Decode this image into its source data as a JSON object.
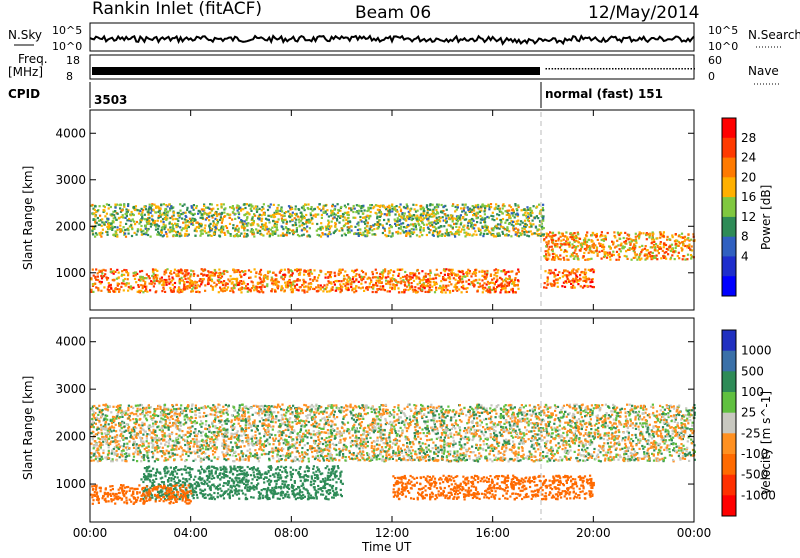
{
  "header": {
    "station": "Rankin Inlet (fitACF)",
    "beam": "Beam 06",
    "date": "12/May/2014"
  },
  "summary_panels": {
    "nsky": {
      "left_label": "N.Sky",
      "right_label": "N.Search",
      "right_ticks": [
        "10^5",
        "10^0"
      ],
      "left_ticks": [
        "10^5",
        "10^0"
      ]
    },
    "freq": {
      "left_label_1": "Freq.",
      "left_label_2": "[MHz]",
      "left_ticks": [
        "18",
        "8"
      ],
      "right_label": "Nave",
      "right_ticks": [
        "60",
        "0"
      ]
    },
    "cpid": {
      "label": "CPID",
      "segments": [
        {
          "text": "3503",
          "start_hour": 0
        },
        {
          "text": "normal (fast) 151",
          "start_hour": 18
        }
      ]
    }
  },
  "chart_data": [
    {
      "type": "heatmap",
      "name": "power",
      "xlabel": "",
      "ylabel": "Slant Range [km]",
      "xlim": [
        0,
        24
      ],
      "ylim": [
        200,
        4500
      ],
      "y_ticks": [
        1000,
        2000,
        3000,
        4000
      ],
      "x_ticks": [
        0,
        4,
        8,
        12,
        16,
        20,
        24
      ],
      "colorbar": {
        "label": "Power [dB]",
        "tick_labels": [
          "28",
          "24",
          "20",
          "16",
          "12",
          "8",
          "4"
        ],
        "colors": [
          "#ff0000",
          "#ff3a00",
          "#ff7a00",
          "#ffb000",
          "#80c840",
          "#2e8b57",
          "#3060c0",
          "#1e2ecc",
          "#0000ff"
        ]
      },
      "bands": [
        {
          "x": [
            0,
            18
          ],
          "y": [
            1800,
            2500
          ],
          "level": 14
        },
        {
          "x": [
            0,
            17
          ],
          "y": [
            600,
            1100
          ],
          "level": 22
        },
        {
          "x": [
            18,
            24
          ],
          "y": [
            1300,
            1900
          ],
          "level": 20
        },
        {
          "x": [
            18,
            20
          ],
          "y": [
            700,
            1100
          ],
          "level": 24
        }
      ]
    },
    {
      "type": "heatmap",
      "name": "velocity",
      "xlabel": "Time UT",
      "ylabel": "Slant Range [km]",
      "xlim": [
        0,
        24
      ],
      "ylim": [
        200,
        4500
      ],
      "y_ticks": [
        1000,
        2000,
        3000,
        4000
      ],
      "x_ticks": [
        0,
        4,
        8,
        12,
        16,
        20,
        24
      ],
      "x_tick_labels": [
        "00:00",
        "04:00",
        "08:00",
        "12:00",
        "16:00",
        "20:00",
        "00:00"
      ],
      "colorbar": {
        "label": "Velocity [m s^-1]",
        "tick_labels": [
          "1000",
          "500",
          "100",
          "25",
          "-25",
          "-100",
          "-500",
          "-1000"
        ],
        "colors": [
          "#2030c0",
          "#3a70a8",
          "#2e8b57",
          "#60c040",
          "#c8c8c0",
          "#ff9020",
          "#ff6a00",
          "#ff3000",
          "#ff0000"
        ]
      },
      "bands": [
        {
          "x": [
            0,
            24
          ],
          "y": [
            1500,
            2700
          ],
          "velocity": 0
        },
        {
          "x": [
            2,
            10
          ],
          "y": [
            700,
            1400
          ],
          "velocity": 300
        },
        {
          "x": [
            0,
            4
          ],
          "y": [
            600,
            1000
          ],
          "velocity": -200
        },
        {
          "x": [
            12,
            20
          ],
          "y": [
            700,
            1200
          ],
          "velocity": -300
        }
      ]
    }
  ],
  "colors": {
    "axis": "#000000",
    "gray_marker": "#bbbbbb"
  }
}
